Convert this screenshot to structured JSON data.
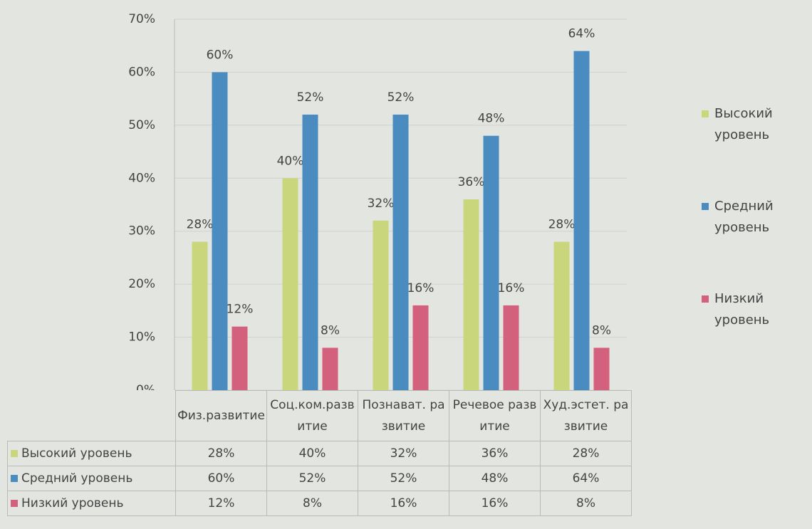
{
  "chart_data": {
    "type": "bar",
    "categories": [
      "Физ.развитие",
      "Соц.ком.развитие",
      "Познават. развитие",
      "Речевое развитие",
      "Худ.эстет. развитие"
    ],
    "series": [
      {
        "name": "Высокий уровень",
        "color": "#c9d67c",
        "values": [
          28,
          40,
          32,
          36,
          28
        ],
        "value_labels": [
          "28%",
          "40%",
          "32%",
          "36%",
          "28%"
        ]
      },
      {
        "name": "Средний уровень",
        "color": "#4a8cc0",
        "values": [
          60,
          52,
          52,
          48,
          64
        ],
        "value_labels": [
          "60%",
          "52%",
          "52%",
          "48%",
          "64%"
        ]
      },
      {
        "name": "Низкий уровень",
        "color": "#d3607c",
        "values": [
          12,
          8,
          16,
          16,
          8
        ],
        "value_labels": [
          "12%",
          "8%",
          "16%",
          "16%",
          "8%"
        ]
      }
    ],
    "ylim": [
      0,
      70
    ],
    "yticks": [
      {
        "value": 0,
        "label": "0%"
      },
      {
        "value": 10,
        "label": "10%"
      },
      {
        "value": 20,
        "label": "20%"
      },
      {
        "value": 30,
        "label": "30%"
      },
      {
        "value": 40,
        "label": "40%"
      },
      {
        "value": 50,
        "label": "50%"
      },
      {
        "value": 60,
        "label": "60%"
      },
      {
        "value": 70,
        "label": "70%"
      }
    ],
    "grid": true,
    "legend": "right",
    "data_table": true
  }
}
